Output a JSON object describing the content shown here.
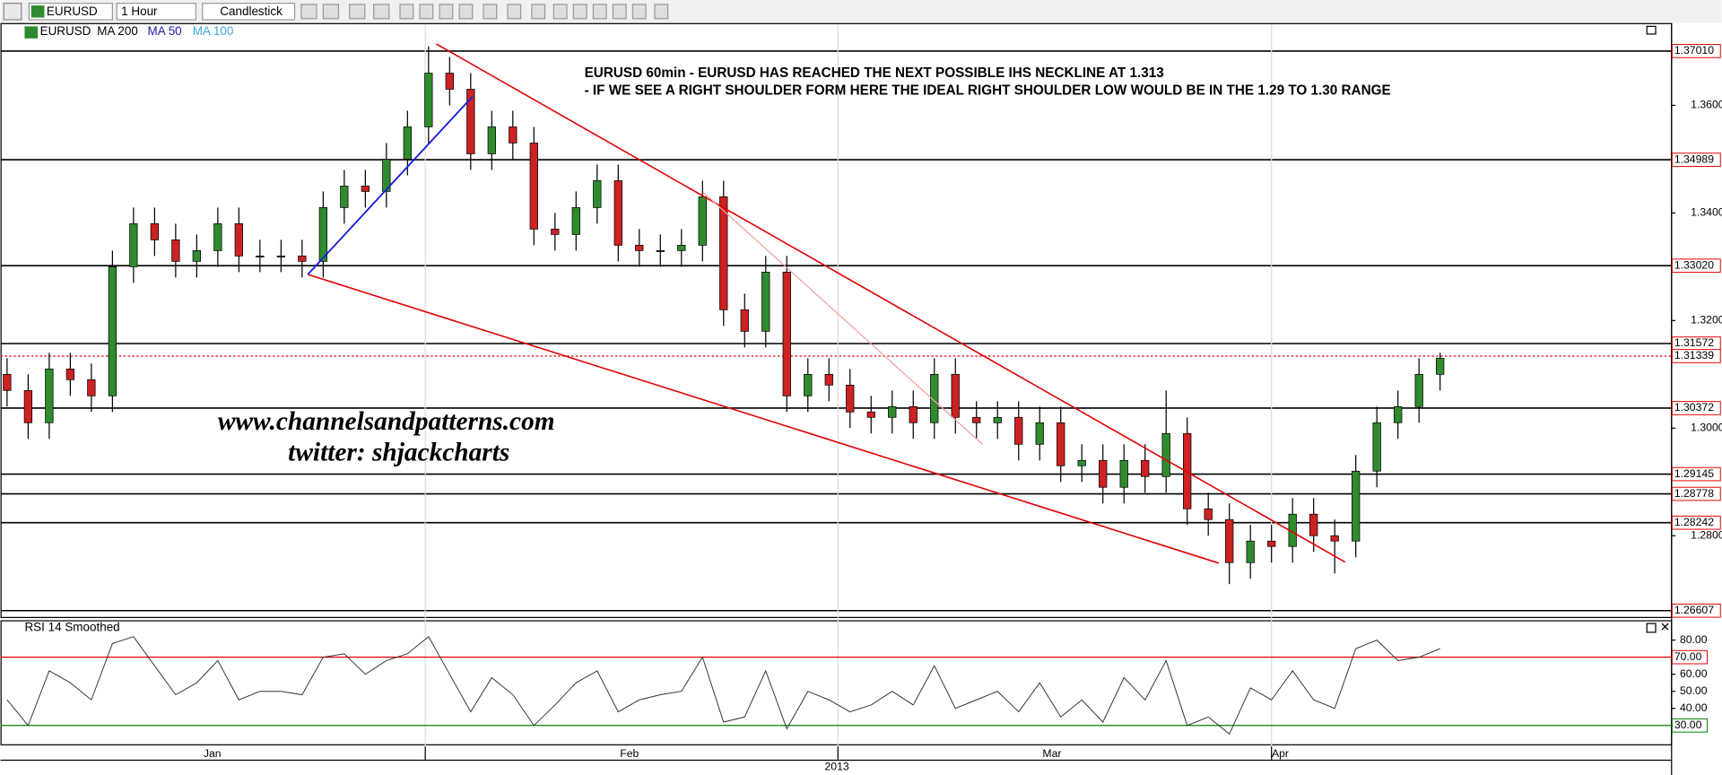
{
  "toolbar": {
    "symbol": "EURUSD",
    "interval": "1 Hour",
    "chart_style": "Candlestick"
  },
  "chart_data": [
    {
      "type": "candlestick",
      "legend": [
        "EURUSD",
        "MA 200",
        "MA 50",
        "MA 100"
      ],
      "annotations": [
        "EURUSD 60min - EURUSD HAS REACHED THE NEXT POSSIBLE IHS NECKLINE AT 1.313",
        "- IF WE SEE A RIGHT SHOULDER FORM HERE THE IDEAL RIGHT SHOULDER LOW WOULD BE IN THE 1.29 TO 1.30 RANGE"
      ],
      "watermark": [
        "www.channelsandpatterns.com",
        "twitter: shjackcharts"
      ],
      "open": [
        1.31,
        1.307,
        1.301,
        1.311,
        1.309,
        1.306,
        1.33,
        1.338,
        1.335,
        1.331,
        1.333,
        1.338,
        1.332,
        1.332,
        1.332,
        1.331,
        1.341,
        1.345,
        1.344,
        1.35,
        1.356,
        1.366,
        1.363,
        1.351,
        1.356,
        1.353,
        1.337,
        1.336,
        1.341,
        1.346,
        1.334,
        1.333,
        1.333,
        1.334,
        1.343,
        1.322,
        1.318,
        1.329,
        1.306,
        1.31,
        1.308,
        1.303,
        1.302,
        1.304,
        1.301,
        1.31,
        1.302,
        1.301,
        1.302,
        1.297,
        1.301,
        1.293,
        1.294,
        1.289,
        1.294,
        1.291,
        1.299,
        1.285,
        1.283,
        1.275,
        1.279,
        1.278,
        1.284,
        1.28,
        1.279,
        1.292,
        1.301,
        1.304,
        1.31
      ],
      "high": [
        1.313,
        1.31,
        1.314,
        1.314,
        1.312,
        1.333,
        1.341,
        1.341,
        1.338,
        1.336,
        1.341,
        1.341,
        1.335,
        1.335,
        1.335,
        1.344,
        1.348,
        1.348,
        1.353,
        1.359,
        1.371,
        1.369,
        1.366,
        1.359,
        1.359,
        1.356,
        1.34,
        1.344,
        1.349,
        1.349,
        1.337,
        1.336,
        1.337,
        1.346,
        1.346,
        1.325,
        1.332,
        1.332,
        1.313,
        1.313,
        1.311,
        1.306,
        1.307,
        1.307,
        1.313,
        1.313,
        1.305,
        1.305,
        1.305,
        1.304,
        1.304,
        1.297,
        1.297,
        1.297,
        1.297,
        1.307,
        1.302,
        1.288,
        1.286,
        1.282,
        1.282,
        1.287,
        1.287,
        1.283,
        1.295,
        1.304,
        1.307,
        1.313,
        1.314
      ],
      "low": [
        1.304,
        1.298,
        1.298,
        1.306,
        1.303,
        1.303,
        1.327,
        1.332,
        1.328,
        1.328,
        1.33,
        1.329,
        1.329,
        1.329,
        1.328,
        1.328,
        1.338,
        1.341,
        1.341,
        1.347,
        1.353,
        1.36,
        1.348,
        1.348,
        1.35,
        1.334,
        1.333,
        1.333,
        1.338,
        1.331,
        1.33,
        1.33,
        1.33,
        1.331,
        1.319,
        1.315,
        1.315,
        1.303,
        1.303,
        1.305,
        1.3,
        1.299,
        1.299,
        1.298,
        1.298,
        1.299,
        1.298,
        1.298,
        1.294,
        1.294,
        1.29,
        1.29,
        1.286,
        1.286,
        1.288,
        1.288,
        1.282,
        1.28,
        1.271,
        1.272,
        1.275,
        1.275,
        1.277,
        1.273,
        1.276,
        1.289,
        1.298,
        1.301,
        1.307
      ],
      "close": [
        1.307,
        1.301,
        1.311,
        1.309,
        1.306,
        1.33,
        1.338,
        1.335,
        1.331,
        1.333,
        1.338,
        1.332,
        1.332,
        1.332,
        1.331,
        1.341,
        1.345,
        1.344,
        1.35,
        1.356,
        1.366,
        1.363,
        1.351,
        1.356,
        1.353,
        1.337,
        1.336,
        1.341,
        1.346,
        1.334,
        1.333,
        1.333,
        1.334,
        1.343,
        1.322,
        1.318,
        1.329,
        1.306,
        1.31,
        1.308,
        1.303,
        1.302,
        1.304,
        1.301,
        1.31,
        1.302,
        1.301,
        1.302,
        1.297,
        1.301,
        1.293,
        1.294,
        1.289,
        1.294,
        1.291,
        1.299,
        1.285,
        1.283,
        1.275,
        1.279,
        1.278,
        1.284,
        1.28,
        1.279,
        1.292,
        1.301,
        1.304,
        1.31,
        1.313
      ],
      "up_color": "#2e8b2e",
      "down_color": "#cc2222",
      "ylim": [
        1.2649,
        1.3751
      ],
      "yticks": [
        {
          "value": 1.36,
          "label": "1.36000"
        },
        {
          "value": 1.34,
          "label": "1.34000"
        },
        {
          "value": 1.32,
          "label": "1.32000"
        },
        {
          "value": 1.3,
          "label": "1.30000"
        },
        {
          "value": 1.28,
          "label": "1.28000"
        }
      ],
      "levels": [
        {
          "value": 1.3701,
          "label": "1.37010",
          "style": "solid"
        },
        {
          "value": 1.34989,
          "label": "1.34989",
          "style": "solid"
        },
        {
          "value": 1.3302,
          "label": "1.33020",
          "style": "solid"
        },
        {
          "value": 1.31572,
          "label": "1.31572",
          "style": "solid"
        },
        {
          "value": 1.31339,
          "label": "1.31339",
          "style": "dotted"
        },
        {
          "value": 1.30372,
          "label": "1.30372",
          "style": "solid"
        },
        {
          "value": 1.29145,
          "label": "1.29145",
          "style": "solid"
        },
        {
          "value": 1.28778,
          "label": "1.28778",
          "style": "solid"
        },
        {
          "value": 1.28242,
          "label": "1.28242",
          "style": "solid"
        },
        {
          "value": 1.26607,
          "label": "1.26607",
          "style": "solid"
        }
      ],
      "x_axis_labels": [
        "Jan",
        "Feb",
        "Mar",
        "Apr"
      ],
      "year": "2013"
    },
    {
      "type": "line",
      "title": "RSI 14 Smoothed",
      "color": "#333333",
      "values": [
        45,
        30,
        62,
        55,
        45,
        78,
        82,
        65,
        48,
        55,
        68,
        45,
        50,
        50,
        48,
        70,
        72,
        60,
        68,
        72,
        82,
        60,
        38,
        58,
        48,
        30,
        42,
        55,
        62,
        38,
        45,
        48,
        50,
        70,
        32,
        35,
        62,
        28,
        50,
        45,
        38,
        42,
        50,
        42,
        65,
        40,
        45,
        50,
        38,
        55,
        35,
        45,
        32,
        58,
        45,
        68,
        30,
        35,
        25,
        52,
        45,
        62,
        45,
        40,
        75,
        80,
        68,
        70,
        75
      ],
      "ylim": [
        19,
        91
      ],
      "yticks": [
        {
          "value": 80,
          "label": "80.00"
        },
        {
          "value": 60,
          "label": "60.00"
        },
        {
          "value": 50,
          "label": "50.00"
        },
        {
          "value": 40,
          "label": "40.00"
        }
      ],
      "levels": [
        {
          "value": 70,
          "label": "70.00",
          "color": "#e00000"
        },
        {
          "value": 30,
          "label": "30.00",
          "color": "#008000"
        }
      ]
    }
  ]
}
